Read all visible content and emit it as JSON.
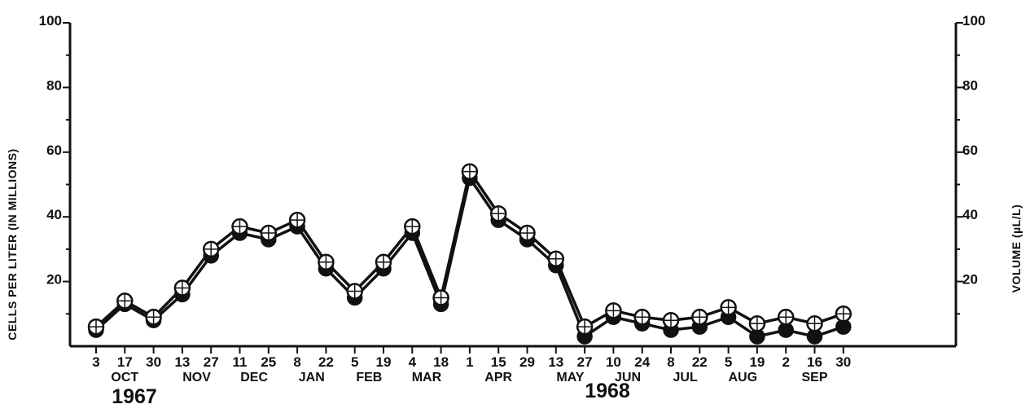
{
  "chart_data": {
    "type": "line",
    "title": "",
    "ylabel_left": "CELLS PER LITER (IN MILLIONS)",
    "ylabel_right": "VOLUME (µL/L)",
    "ylim": [
      0,
      100
    ],
    "y_ticks_left": [
      "20",
      "40",
      "60",
      "80",
      "100"
    ],
    "y_ticks_right": [
      "20",
      "40",
      "60",
      "80",
      "100"
    ],
    "x_tick_labels": [
      "3",
      "17",
      "30",
      "13",
      "27",
      "11",
      "25",
      "8",
      "22",
      "5",
      "19",
      "4",
      "18",
      "1",
      "15",
      "29",
      "13",
      "27",
      "10",
      "24",
      "8",
      "22",
      "5",
      "19",
      "2",
      "16",
      "30"
    ],
    "months": [
      "OCT",
      "NOV",
      "DEC",
      "JAN",
      "FEB",
      "MAR",
      "APR",
      "MAY",
      "JUN",
      "JUL",
      "AUG",
      "SEP"
    ],
    "years": [
      "1967",
      "1968"
    ],
    "series": [
      {
        "marker": "circle-cross-open",
        "values": [
          6,
          14,
          9,
          18,
          30,
          37,
          35,
          39,
          26,
          17,
          26,
          37,
          15,
          54,
          41,
          35,
          27,
          6,
          11,
          9,
          8,
          9,
          12,
          7,
          9,
          7,
          10
        ]
      },
      {
        "marker": "circle-filled",
        "values": [
          5,
          13,
          8,
          16,
          28,
          35,
          33,
          37,
          24,
          15,
          24,
          35,
          13,
          52,
          39,
          33,
          25,
          3,
          9,
          7,
          5,
          6,
          9,
          3,
          5,
          3,
          6
        ]
      }
    ]
  }
}
